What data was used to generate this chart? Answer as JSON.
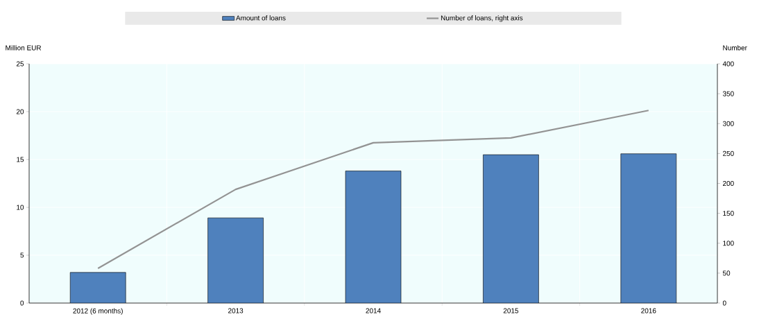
{
  "chart_data": {
    "type": "bar",
    "categories": [
      "2012 (6 months)",
      "2013",
      "2014",
      "2015",
      "2016"
    ],
    "ylabel": "Million EUR",
    "y2label": "Number",
    "ylim": [
      0,
      25
    ],
    "yticks": [
      0,
      5,
      10,
      15,
      20,
      25
    ],
    "y2lim": [
      0,
      400
    ],
    "y2ticks": [
      0,
      50,
      100,
      150,
      200,
      250,
      300,
      350,
      400
    ],
    "grid": true,
    "legend": "top",
    "series": [
      {
        "name": "Amount of loans",
        "color": "#4f81bd",
        "values": [
          3.2,
          8.9,
          13.8,
          15.5,
          15.6
        ]
      },
      {
        "name": "Number of loans, right axis",
        "type": "line",
        "axis": "y2",
        "color": "#939393",
        "values": [
          58,
          190,
          268,
          276,
          322
        ]
      }
    ]
  }
}
